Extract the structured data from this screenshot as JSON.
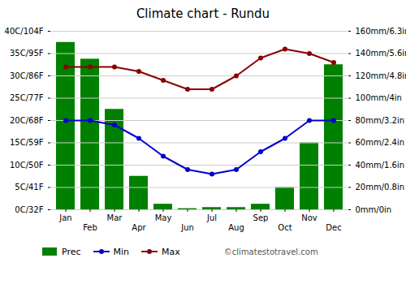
{
  "chart_data": {
    "type": "bar",
    "title": "Climate chart - Rundu",
    "categories": [
      "Jan",
      "Feb",
      "Mar",
      "Apr",
      "May",
      "Jun",
      "Jul",
      "Aug",
      "Sep",
      "Oct",
      "Nov",
      "Dec"
    ],
    "series": [
      {
        "name": "Prec",
        "type": "bar",
        "axis": "y2",
        "color": "#008000",
        "values": [
          150,
          135,
          90,
          30,
          5,
          1,
          2,
          2,
          5,
          20,
          60,
          130
        ]
      },
      {
        "name": "Min",
        "type": "line",
        "marker": "circle",
        "color": "#0000CC",
        "values": [
          20,
          20,
          19,
          16,
          12,
          9,
          8,
          9,
          13,
          16,
          20,
          20
        ]
      },
      {
        "name": "Max",
        "type": "line",
        "marker": "circle",
        "color": "#8B0000",
        "values": [
          32,
          32,
          32,
          31,
          29,
          27,
          27,
          30,
          34,
          36,
          35,
          33
        ]
      }
    ],
    "ylim": [
      0,
      40
    ],
    "yticks": [
      {
        "value": 0,
        "label": "0C/32F"
      },
      {
        "value": 5,
        "label": "5C/41F"
      },
      {
        "value": 10,
        "label": "10C/50F"
      },
      {
        "value": 15,
        "label": "15C/59F"
      },
      {
        "value": 20,
        "label": "20C/68F"
      },
      {
        "value": 25,
        "label": "25C/77F"
      },
      {
        "value": 30,
        "label": "30C/86F"
      },
      {
        "value": 35,
        "label": "35C/95F"
      },
      {
        "value": 40,
        "label": "40C/104F"
      }
    ],
    "y2lim": [
      0,
      160
    ],
    "y2ticks": [
      {
        "value": 0,
        "label": "0mm/0in"
      },
      {
        "value": 20,
        "label": "20mm/0.8in"
      },
      {
        "value": 40,
        "label": "40mm/1.6in"
      },
      {
        "value": 60,
        "label": "60mm/2.4in"
      },
      {
        "value": 80,
        "label": "80mm/3.2in"
      },
      {
        "value": 100,
        "label": "100mm/4in"
      },
      {
        "value": 120,
        "label": "120mm/4.8in"
      },
      {
        "value": 140,
        "label": "140mm/5.6in"
      },
      {
        "value": 160,
        "label": "160mm/6.3in"
      }
    ],
    "grid": true,
    "legend": "bottom",
    "annotations": [
      "©climatestotravel.com"
    ]
  }
}
